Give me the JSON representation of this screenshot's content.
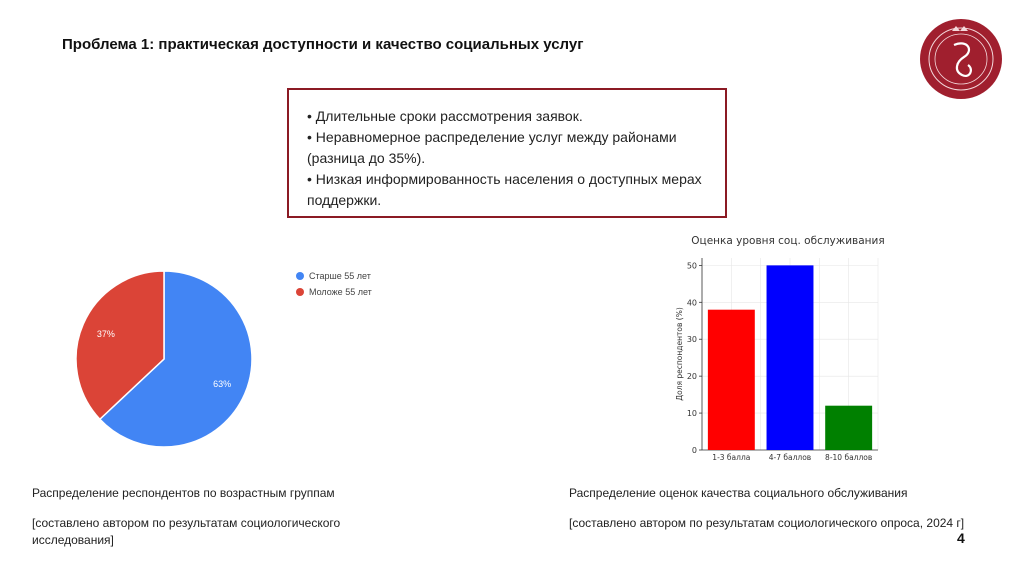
{
  "header": {
    "title": "Проблема 1: практическая доступности и качество социальных услуг"
  },
  "colors": {
    "accent": "#8b1a24",
    "logo": "#a01f2e"
  },
  "bullets": [
    "• Длительные сроки рассмотрения заявок.",
    "• Неравномерное распределение услуг между районами (разница до 35%).",
    "• Низкая информированность населения о доступных мерах поддержки."
  ],
  "chart_data": [
    {
      "type": "pie",
      "slices": [
        {
          "name": "Старше 55 лет",
          "value": 63,
          "label": "63%",
          "color": "#4285f4"
        },
        {
          "name": "Моложе 55 лет",
          "value": 37,
          "label": "37%",
          "color": "#db4437"
        }
      ],
      "legend_position": "right"
    },
    {
      "type": "bar",
      "title": "Оценка уровня соц. обслуживания",
      "ylabel": "Доля респондентов (%)",
      "categories": [
        "1-3 балла",
        "4-7 баллов",
        "8-10 баллов"
      ],
      "values": [
        38,
        50,
        12
      ],
      "colors": [
        "#ff0000",
        "#0000ff",
        "#008000"
      ],
      "ylim": [
        0,
        52
      ],
      "yticks": [
        0,
        10,
        20,
        30,
        40,
        50
      ],
      "grid": true
    }
  ],
  "captions": {
    "pie_title": "Распределение респондентов по возрастным группам",
    "pie_source": "[составлено автором по результатам социологического исследования]",
    "bar_title": "Распределение оценок качества социального обслуживания",
    "bar_source": "[составлено автором по результатам социологического опроса, 2024 г]"
  },
  "page_number": "4"
}
